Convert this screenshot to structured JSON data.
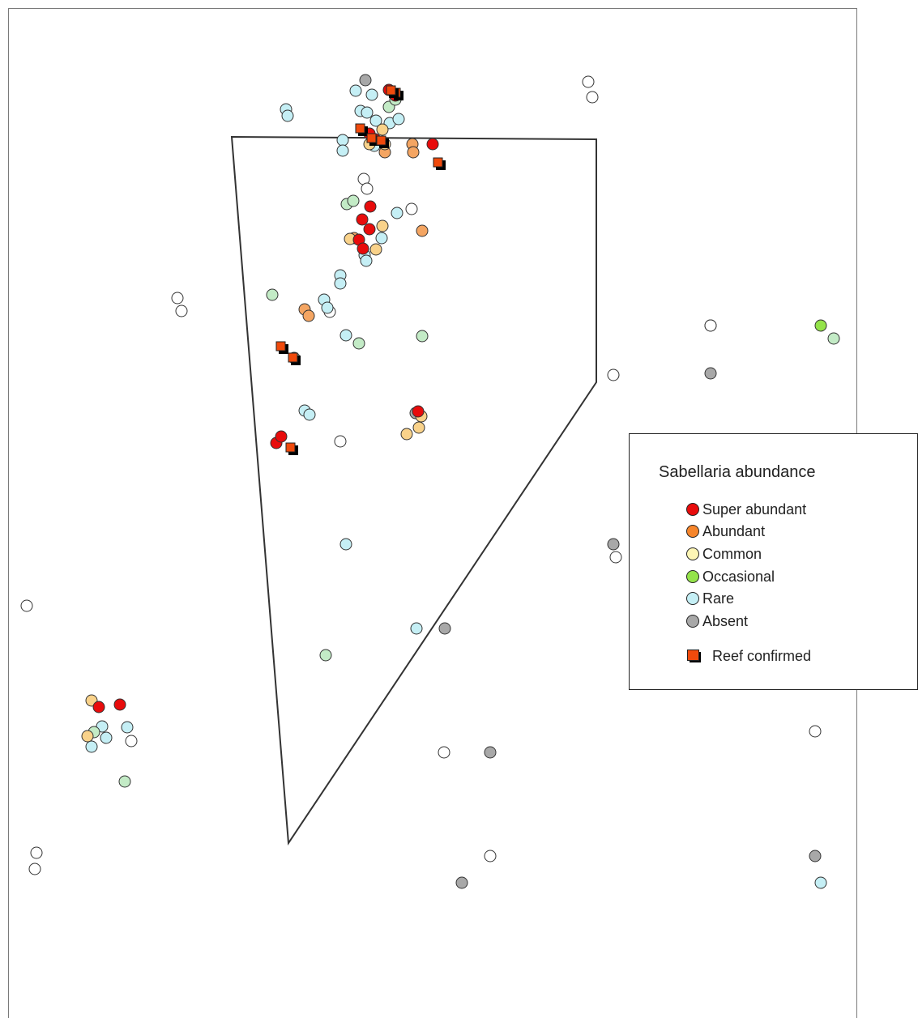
{
  "legend": {
    "title": "Sabellaria abundance",
    "items": [
      {
        "key": "super",
        "label": "Super abundant",
        "color": "#e80c0c"
      },
      {
        "key": "abundant",
        "label": "Abundant",
        "color": "#f6852b"
      },
      {
        "key": "common",
        "label": "Common",
        "color": "#fdf6b5"
      },
      {
        "key": "occasional",
        "label": "Occasional",
        "color": "#94e34a"
      },
      {
        "key": "rare",
        "label": "Rare",
        "color": "#c5eff5"
      },
      {
        "key": "absent",
        "label": "Absent",
        "color": "#a8a8a8"
      }
    ],
    "reef_label": "Reef confirmed",
    "reef_color": "#f04a0c"
  },
  "map_colors": {
    "super": "#e80c0c",
    "abundant": "#f4a562",
    "common": "#f9d28a",
    "occasional": "#94e34a",
    "pale_green": "#c3ebc6",
    "rare": "#c5eff5",
    "absent": "#a8a8a8",
    "unsampled": "#ffffff",
    "reef": "#f04a0c"
  },
  "site_groups": [
    {
      "category": "unsampled",
      "count": 22
    },
    {
      "category": "rare",
      "count": 30
    },
    {
      "category": "pale_green",
      "count": 12
    },
    {
      "category": "occasional",
      "count": 1
    },
    {
      "category": "absent",
      "count": 7
    },
    {
      "category": "abundant",
      "count": 6
    },
    {
      "category": "common",
      "count": 11
    },
    {
      "category": "super",
      "count": 15
    },
    {
      "category": "reef",
      "count": 9
    }
  ]
}
